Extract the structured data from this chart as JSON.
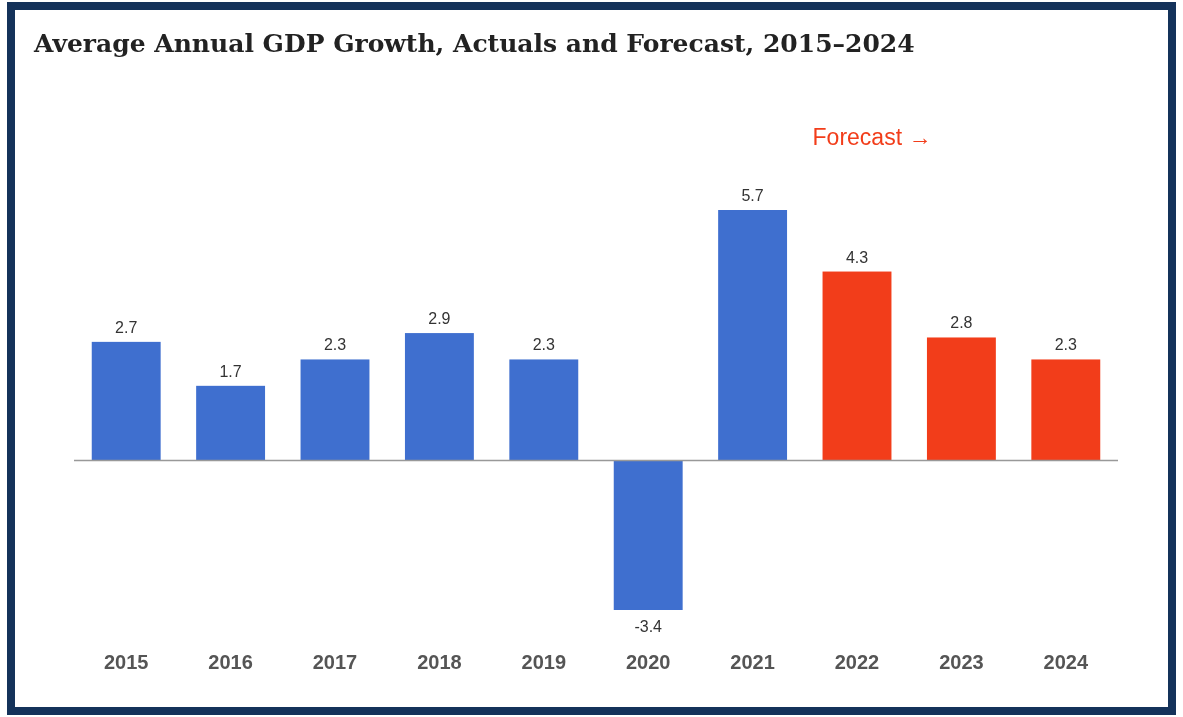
{
  "chart_data": {
    "type": "bar",
    "title": "Average Annual GDP Growth, Actuals and Forecast, 2015–2024",
    "categories": [
      "2015",
      "2016",
      "2017",
      "2018",
      "2019",
      "2020",
      "2021",
      "2022",
      "2023",
      "2024"
    ],
    "values": [
      2.7,
      1.7,
      2.3,
      2.9,
      2.3,
      -3.4,
      5.7,
      4.3,
      2.8,
      2.3
    ],
    "colors": [
      "#3f6fcf",
      "#3f6fcf",
      "#3f6fcf",
      "#3f6fcf",
      "#3f6fcf",
      "#3f6fcf",
      "#3f6fcf",
      "#f23d1a",
      "#f23d1a",
      "#f23d1a"
    ],
    "data_labels": true,
    "annotations": [
      "Forecast →"
    ]
  }
}
